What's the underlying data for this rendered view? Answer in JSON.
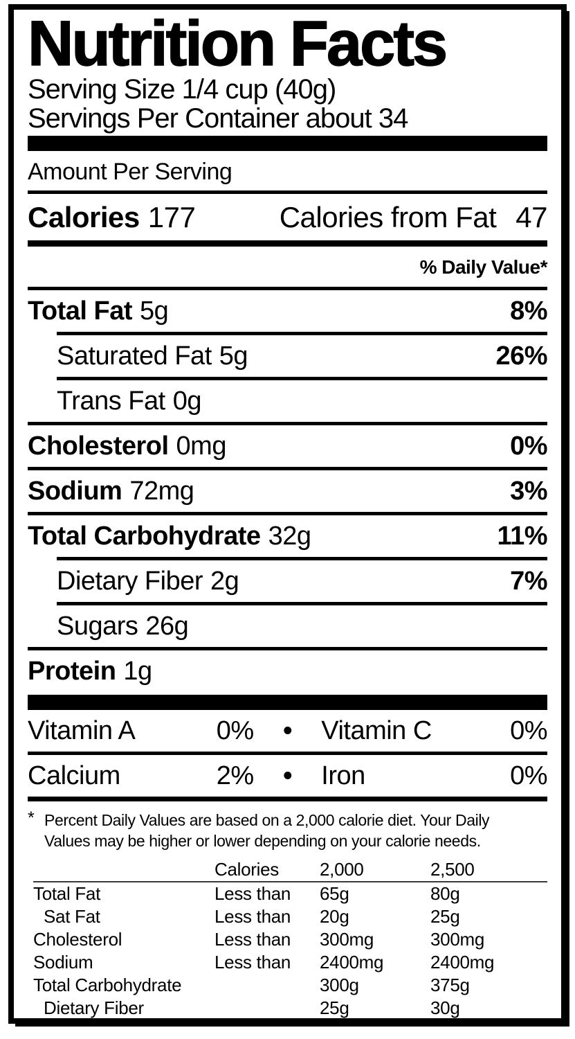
{
  "colors": {
    "ink": "#000000",
    "paper": "#ffffff"
  },
  "label": {
    "title": "Nutrition Facts",
    "serving_size": "Serving Size 1/4 cup (40g)",
    "servings_per_container": "Servings Per Container about 34",
    "amount_per_serving": "Amount Per Serving",
    "calories": {
      "label": "Calories",
      "value": "177",
      "from_fat_label": "Calories from Fat",
      "from_fat_value": "47"
    },
    "daily_value_header": "% Daily Value*",
    "nutrients": [
      {
        "name": "Total Fat",
        "amount": "5g",
        "dv": "8%"
      },
      {
        "name": "Saturated Fat",
        "amount": "5g",
        "dv": "26%"
      },
      {
        "name": "Trans Fat",
        "amount": "0g",
        "dv": ""
      },
      {
        "name": "Cholesterol",
        "amount": "0mg",
        "dv": "0%"
      },
      {
        "name": "Sodium",
        "amount": "72mg",
        "dv": "3%"
      },
      {
        "name": "Total Carbohydrate",
        "amount": "32g",
        "dv": "11%"
      },
      {
        "name": "Dietary Fiber",
        "amount": "2g",
        "dv": "7%"
      },
      {
        "name": "Sugars",
        "amount": "26g",
        "dv": ""
      },
      {
        "name": "Protein",
        "amount": "1g",
        "dv": ""
      }
    ],
    "vitamins": {
      "bullet": "•",
      "rows": [
        {
          "left_name": "Vitamin A",
          "left_value": "0%",
          "right_name": "Vitamin C",
          "right_value": "0%"
        },
        {
          "left_name": "Calcium",
          "left_value": "2%",
          "right_name": "Iron",
          "right_value": "0%"
        }
      ]
    },
    "footnote": {
      "marker": "*",
      "line1": "Percent Daily Values are based on a 2,000 calorie diet. Your Daily",
      "line2": "Values may be higher or lower depending on your calorie needs."
    },
    "dv_table": {
      "header": {
        "calories_label": "Calories",
        "col_2000": "2,000",
        "col_2500": "2,500"
      },
      "rows": [
        {
          "name": "Total Fat",
          "qualifier": "Less than",
          "v2000": "65g",
          "v2500": "80g"
        },
        {
          "name": "Sat Fat",
          "qualifier": "Less than",
          "v2000": "20g",
          "v2500": "25g"
        },
        {
          "name": "Cholesterol",
          "qualifier": "Less than",
          "v2000": "300mg",
          "v2500": "300mg"
        },
        {
          "name": "Sodium",
          "qualifier": "Less than",
          "v2000": "2400mg",
          "v2500": "2400mg"
        },
        {
          "name": "Total Carbohydrate",
          "qualifier": "",
          "v2000": "300g",
          "v2500": "375g"
        },
        {
          "name": "Dietary Fiber",
          "qualifier": "",
          "v2000": "25g",
          "v2500": "30g"
        }
      ]
    }
  }
}
